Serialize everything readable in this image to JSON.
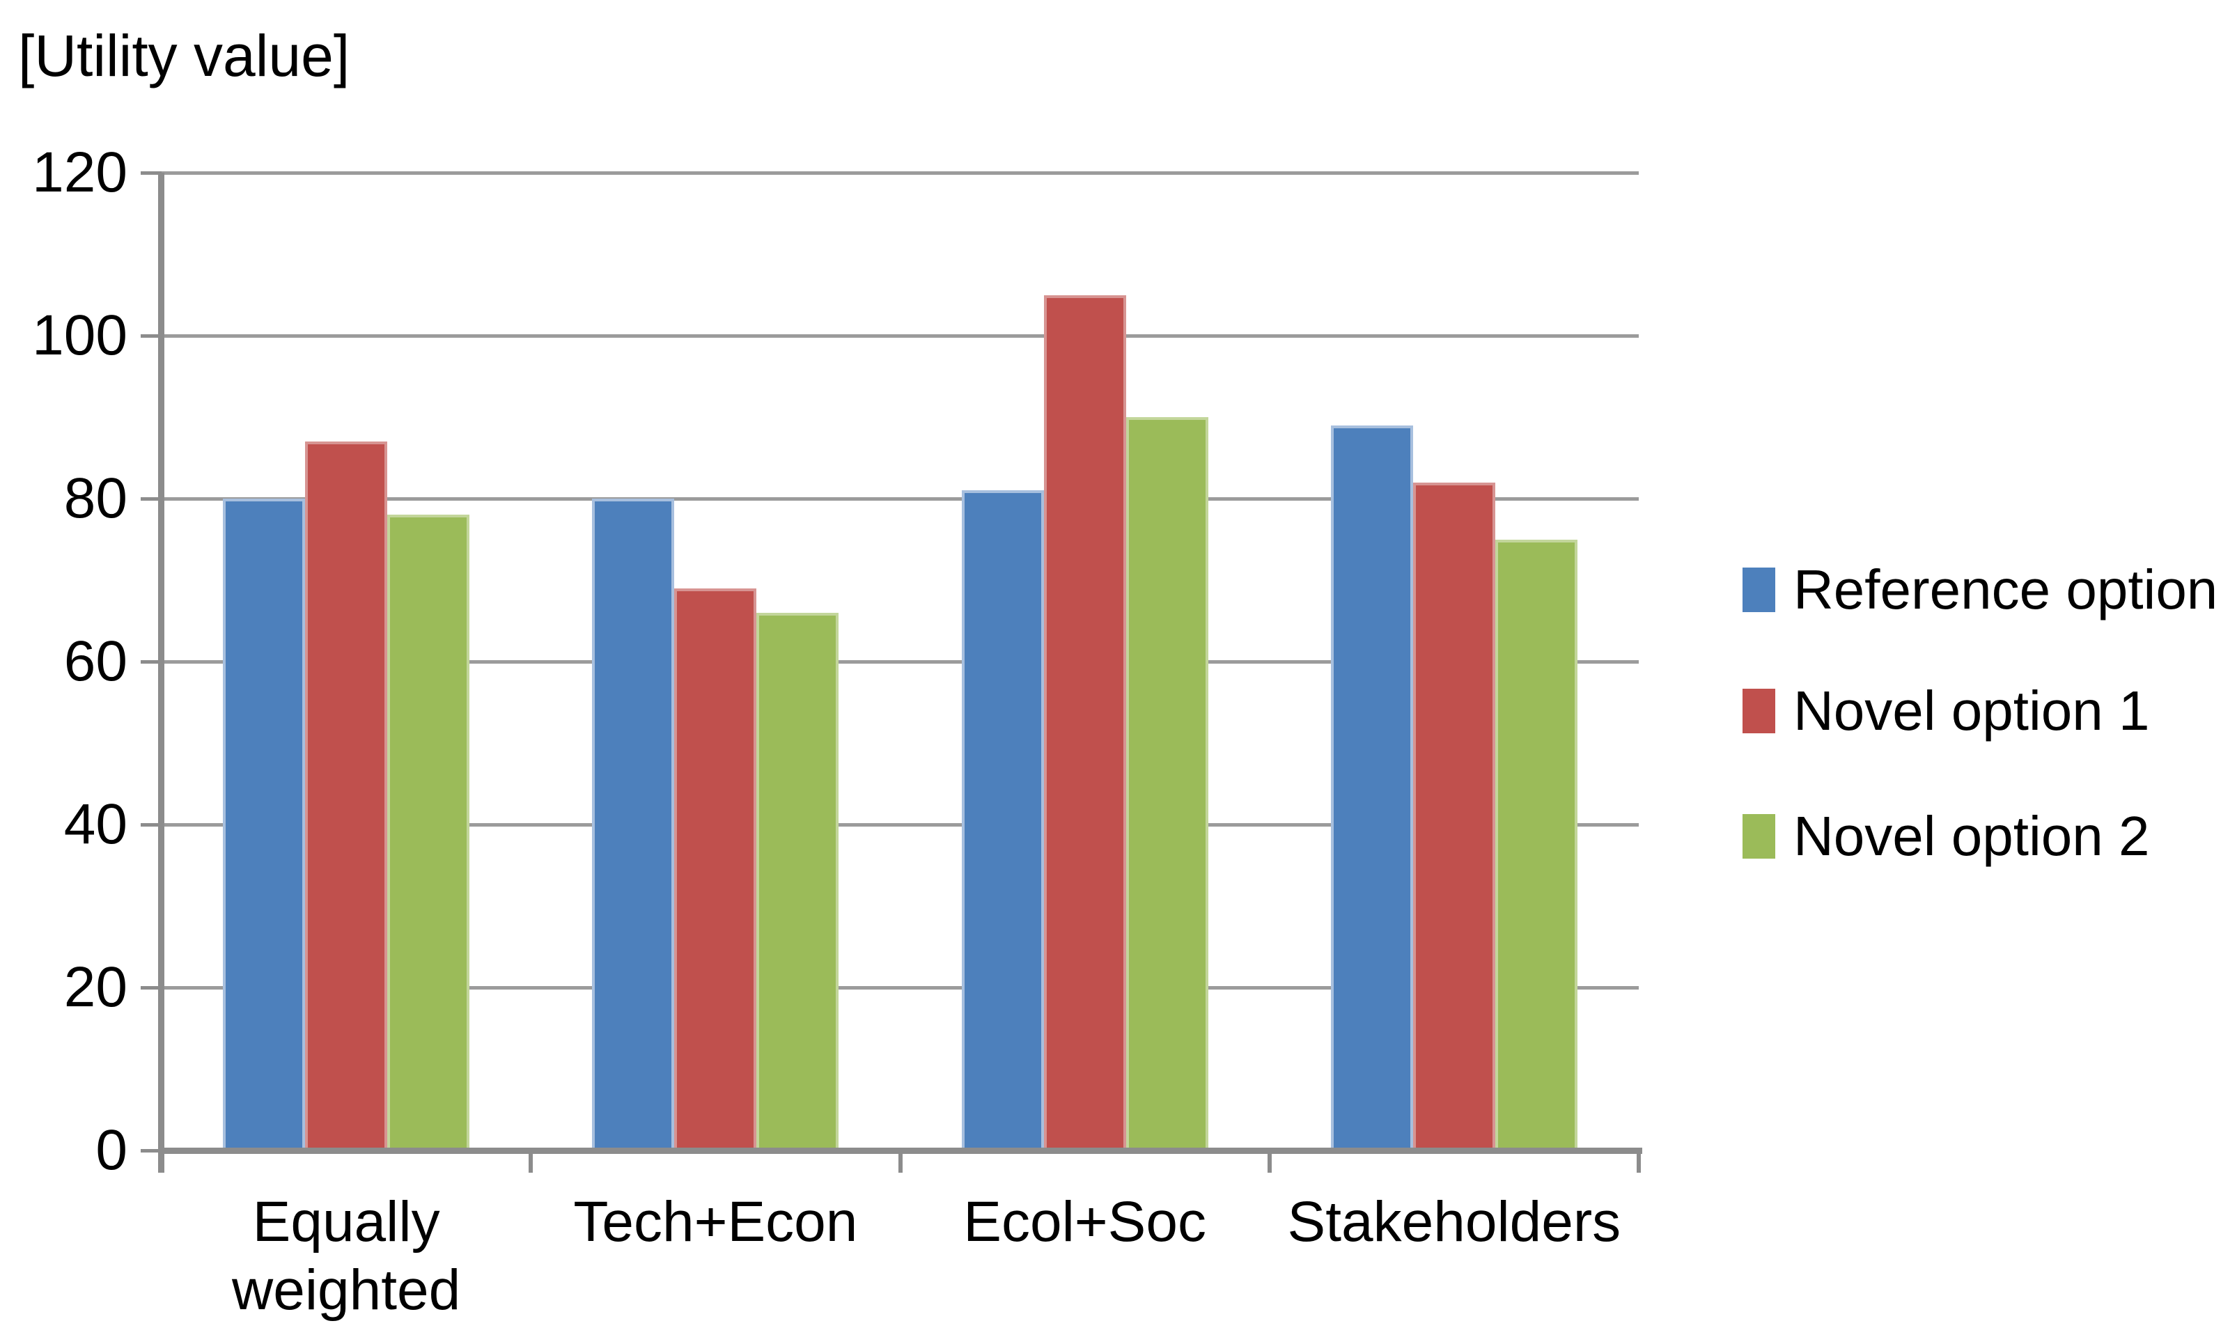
{
  "header": {
    "title": "[Utility value]"
  },
  "chart_data": {
    "type": "bar",
    "title": "[Utility value]",
    "ylabel": "[Utility value]",
    "categories": [
      "Equally weighted",
      "Tech+Econ",
      "Ecol+Soc",
      "Stakeholders"
    ],
    "series": [
      {
        "name": "Reference option",
        "color": "#4D80BC",
        "edge_color": "#A7BFDE",
        "values": [
          80,
          80,
          81,
          89
        ]
      },
      {
        "name": "Novel option 1",
        "color": "#C0504D",
        "edge_color": "#D79492",
        "values": [
          87,
          69,
          105,
          82
        ]
      },
      {
        "name": "Novel option 2",
        "color": "#9BBB59",
        "edge_color": "#C3D69B",
        "values": [
          78,
          66,
          90,
          75
        ]
      }
    ],
    "ylim": [
      0,
      120
    ],
    "yticks": [
      0,
      20,
      40,
      60,
      80,
      100,
      120
    ],
    "grid": true,
    "legend_position": "right-middle",
    "gridline_color": "#9B9B9B",
    "axis_color": "#8C8C8C",
    "text_color": "#000000"
  },
  "legend": {
    "items": [
      {
        "label": "Reference option"
      },
      {
        "label": "Novel option 1"
      },
      {
        "label": "Novel option 2"
      }
    ]
  }
}
